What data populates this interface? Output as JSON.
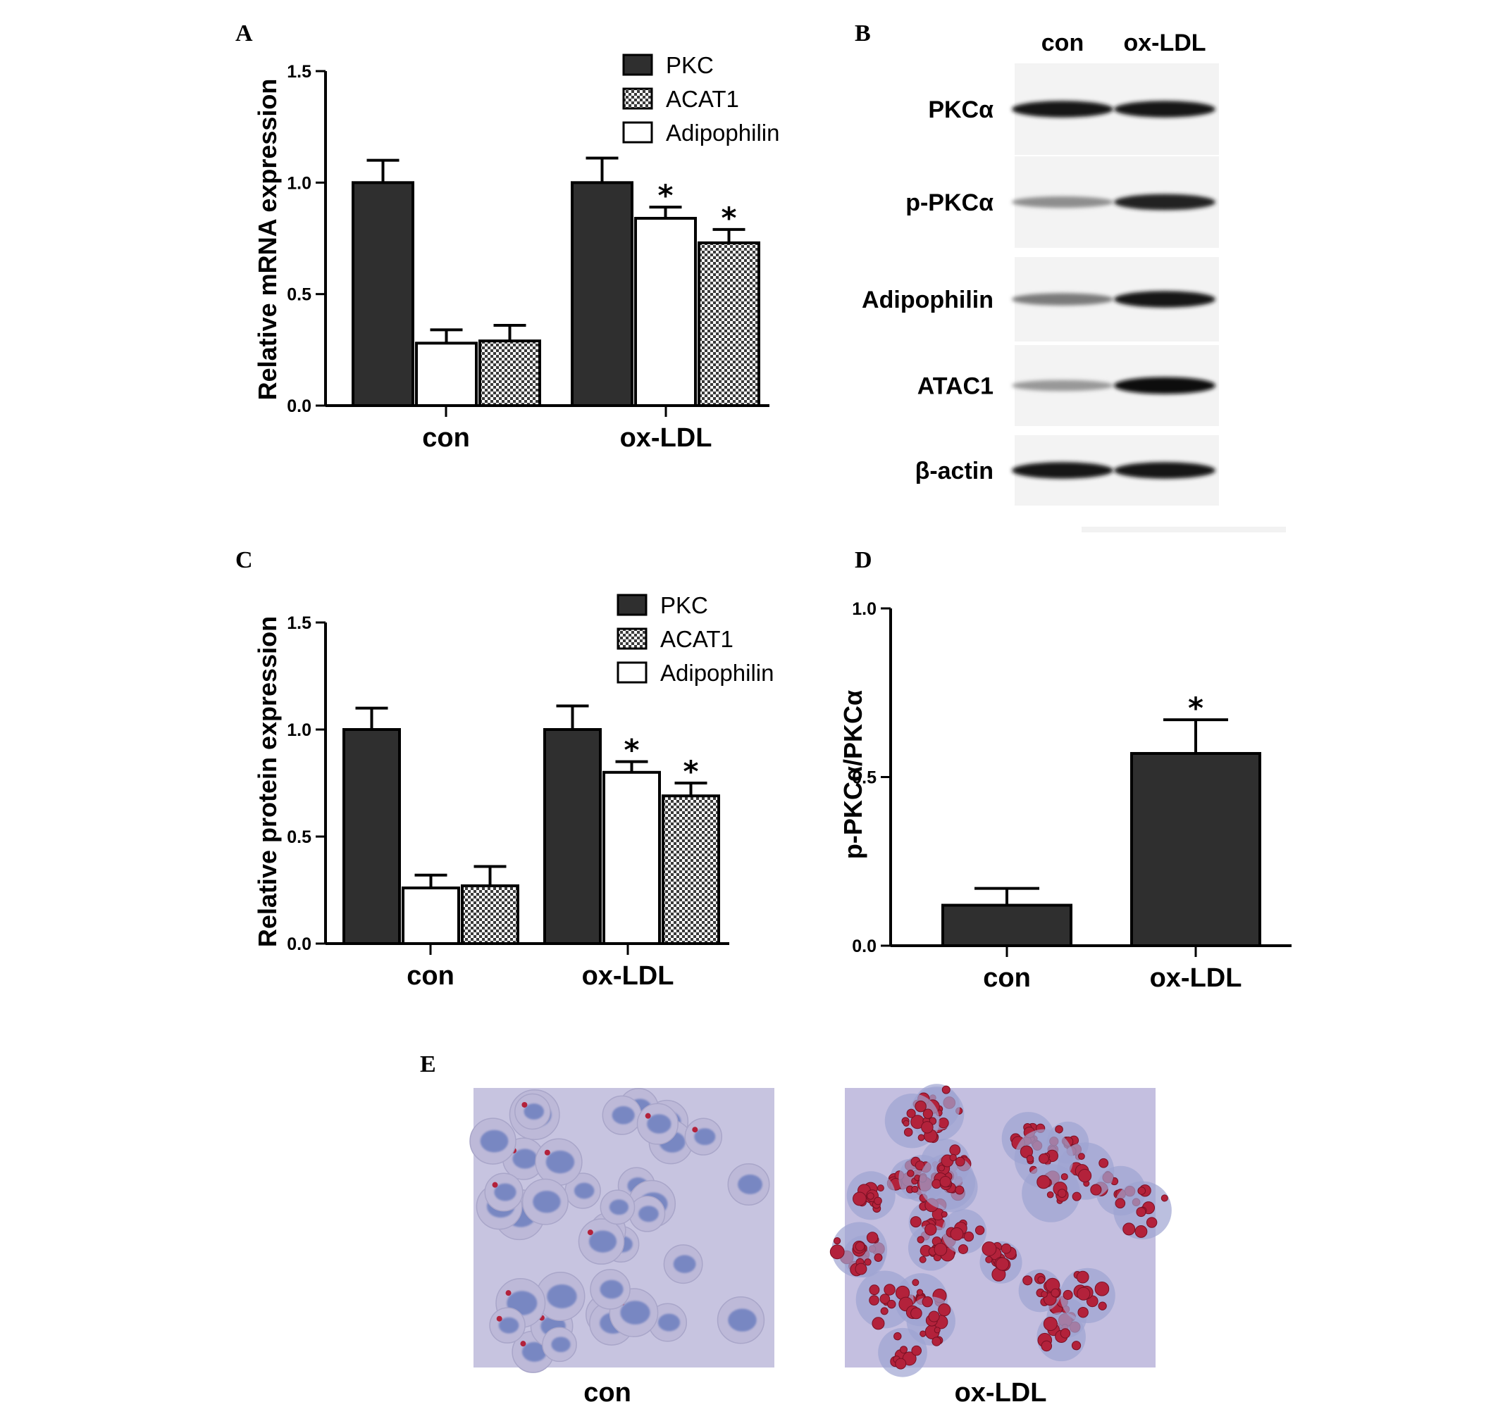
{
  "panels": {
    "A": "A",
    "B": "B",
    "C": "C",
    "D": "D",
    "E": "E"
  },
  "colors": {
    "bar_dark": "#2f2f2f",
    "bar_white": "#ffffff",
    "axis": "#000000",
    "micro_background": "#c7c4e0",
    "cell_blue": "#6d7fbf",
    "lipid_red": "#b3223b"
  },
  "chart_data": [
    {
      "panel": "A",
      "type": "bar",
      "ylabel": "Relative mRNA expression",
      "xlabel": "",
      "ylim": [
        0,
        1.5
      ],
      "yticks": [
        "0.0",
        "0.5",
        "1.0",
        "1.5"
      ],
      "categories": [
        "con",
        "ox-LDL"
      ],
      "legend": {
        "placement": "top-right",
        "entries": [
          {
            "label": "PKC",
            "pattern": "solid"
          },
          {
            "label": "ACAT1",
            "pattern": "checker"
          },
          {
            "label": "Adipophilin",
            "pattern": "white"
          }
        ]
      },
      "groups": [
        {
          "category": "con",
          "bars": [
            {
              "pattern": "solid",
              "value": 1.0,
              "error": 0.1,
              "sig": ""
            },
            {
              "pattern": "white",
              "value": 0.28,
              "error": 0.06,
              "sig": ""
            },
            {
              "pattern": "checker",
              "value": 0.29,
              "error": 0.07,
              "sig": ""
            }
          ]
        },
        {
          "category": "ox-LDL",
          "bars": [
            {
              "pattern": "solid",
              "value": 1.0,
              "error": 0.11,
              "sig": ""
            },
            {
              "pattern": "white",
              "value": 0.84,
              "error": 0.05,
              "sig": "*"
            },
            {
              "pattern": "checker",
              "value": 0.73,
              "error": 0.06,
              "sig": "*"
            }
          ]
        }
      ]
    },
    {
      "panel": "C",
      "type": "bar",
      "ylabel": "Relative protein expression",
      "xlabel": "",
      "ylim": [
        0,
        1.5
      ],
      "yticks": [
        "0.0",
        "0.5",
        "1.0",
        "1.5"
      ],
      "categories": [
        "con",
        "ox-LDL"
      ],
      "legend": {
        "placement": "top-right",
        "entries": [
          {
            "label": "PKC",
            "pattern": "solid"
          },
          {
            "label": "ACAT1",
            "pattern": "checker"
          },
          {
            "label": "Adipophilin",
            "pattern": "white"
          }
        ]
      },
      "groups": [
        {
          "category": "con",
          "bars": [
            {
              "pattern": "solid",
              "value": 1.0,
              "error": 0.1,
              "sig": ""
            },
            {
              "pattern": "white",
              "value": 0.26,
              "error": 0.06,
              "sig": ""
            },
            {
              "pattern": "checker",
              "value": 0.27,
              "error": 0.09,
              "sig": ""
            }
          ]
        },
        {
          "category": "ox-LDL",
          "bars": [
            {
              "pattern": "solid",
              "value": 1.0,
              "error": 0.11,
              "sig": ""
            },
            {
              "pattern": "white",
              "value": 0.8,
              "error": 0.05,
              "sig": "*"
            },
            {
              "pattern": "checker",
              "value": 0.69,
              "error": 0.06,
              "sig": "*"
            }
          ]
        }
      ]
    },
    {
      "panel": "D",
      "type": "bar",
      "ylabel": "p-PKCα/PKCα",
      "xlabel": "",
      "ylim": [
        0,
        1.0
      ],
      "yticks": [
        "0.0",
        "0.5",
        "1.0"
      ],
      "categories": [
        "con",
        "ox-LDL"
      ],
      "groups": [
        {
          "category": "con",
          "bars": [
            {
              "pattern": "solid",
              "value": 0.12,
              "error": 0.05,
              "sig": ""
            }
          ]
        },
        {
          "category": "ox-LDL",
          "bars": [
            {
              "pattern": "solid",
              "value": 0.57,
              "error": 0.1,
              "sig": "*"
            }
          ]
        }
      ]
    }
  ],
  "blot": {
    "lanes": [
      "con",
      "ox-LDL"
    ],
    "rows": [
      {
        "label": "PKCα",
        "con": 0.95,
        "ox": 0.95
      },
      {
        "label": "p-PKCα",
        "con": 0.35,
        "ox": 0.9
      },
      {
        "label": "Adipophilin",
        "con": 0.45,
        "ox": 0.95
      },
      {
        "label": "ATAC1",
        "con": 0.3,
        "ox": 1.0
      },
      {
        "label": "β-actin",
        "con": 0.95,
        "ox": 0.95
      }
    ]
  },
  "micrographs": {
    "con": {
      "label": "con"
    },
    "ox": {
      "label": "ox-LDL"
    }
  }
}
